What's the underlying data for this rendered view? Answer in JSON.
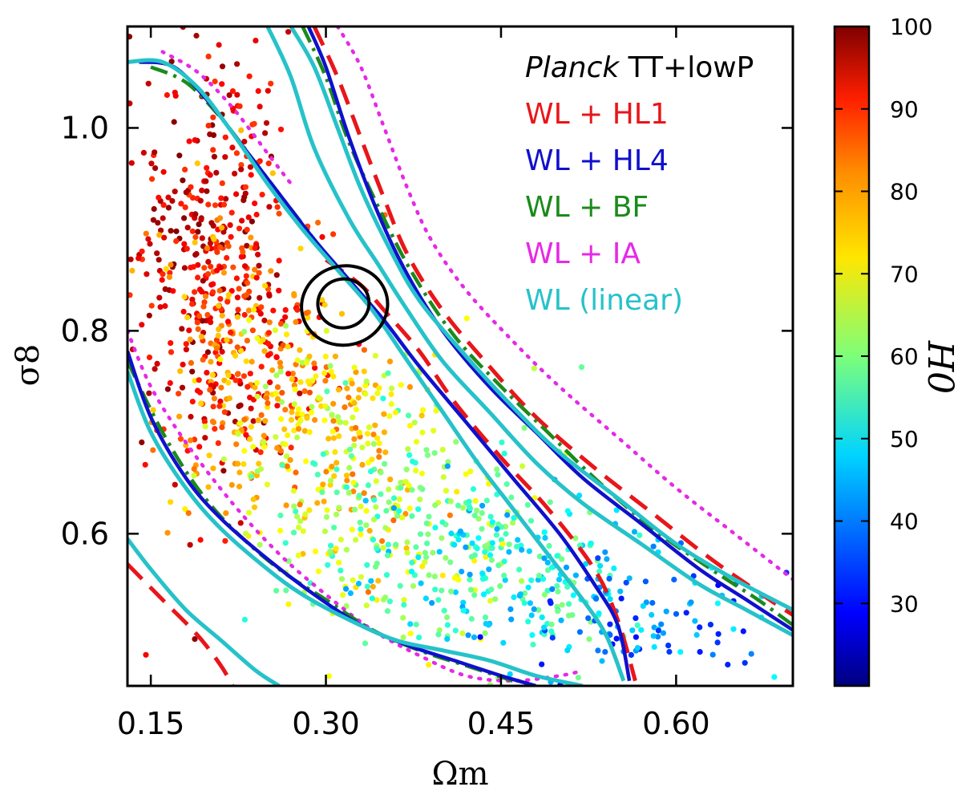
{
  "chart_data": {
    "type": "scatter",
    "xlabel": "Ωm",
    "ylabel": "σ8",
    "xlim": [
      0.13,
      0.7
    ],
    "ylim": [
      0.45,
      1.1
    ],
    "xticks": [
      "0.15",
      "0.30",
      "0.45",
      "0.60"
    ],
    "yticks": [
      "0.6",
      "0.8",
      "1.0"
    ],
    "colorbar": {
      "label": "H0",
      "range": [
        20,
        100
      ],
      "ticks": [
        "30",
        "40",
        "50",
        "60",
        "70",
        "80",
        "90",
        "100"
      ]
    },
    "legend": {
      "placement": "top-right",
      "entries": [
        {
          "italic": "Planck",
          "rest": " TT+lowP",
          "color": "#000000",
          "style": "solid"
        },
        {
          "text": "WL + HL1",
          "color": "#e8161a",
          "style": "dashed"
        },
        {
          "text": "WL + HL4",
          "color": "#1010cc",
          "style": "solid"
        },
        {
          "text": "WL + BF",
          "color": "#1c8a1c",
          "style": "dashdot"
        },
        {
          "text": "WL + IA",
          "color": "#e629e6",
          "style": "dotted"
        },
        {
          "text": "WL (linear)",
          "color": "#26c2c9",
          "style": "solid"
        }
      ]
    },
    "contours": {
      "WL (linear)": {
        "inner_right": [
          [
            0.25,
            1.1
          ],
          [
            0.27,
            1.05
          ],
          [
            0.29,
            0.98
          ],
          [
            0.32,
            0.91
          ],
          [
            0.345,
            0.865
          ],
          [
            0.37,
            0.82
          ],
          [
            0.4,
            0.77
          ],
          [
            0.44,
            0.72
          ],
          [
            0.48,
            0.67
          ],
          [
            0.52,
            0.63
          ],
          [
            0.57,
            0.59
          ],
          [
            0.62,
            0.55
          ],
          [
            0.66,
            0.525
          ],
          [
            0.7,
            0.5
          ]
        ],
        "outer_right": [
          [
            0.27,
            1.1
          ],
          [
            0.29,
            1.06
          ],
          [
            0.31,
            1.0
          ],
          [
            0.33,
            0.94
          ],
          [
            0.355,
            0.88
          ],
          [
            0.38,
            0.83
          ],
          [
            0.42,
            0.775
          ],
          [
            0.46,
            0.725
          ],
          [
            0.5,
            0.68
          ],
          [
            0.55,
            0.635
          ],
          [
            0.6,
            0.59
          ],
          [
            0.65,
            0.555
          ],
          [
            0.7,
            0.525
          ]
        ],
        "inner_left": [
          [
            0.13,
            0.76
          ],
          [
            0.15,
            0.7
          ],
          [
            0.18,
            0.645
          ],
          [
            0.21,
            0.605
          ],
          [
            0.25,
            0.565
          ],
          [
            0.28,
            0.54
          ],
          [
            0.32,
            0.515
          ],
          [
            0.36,
            0.495
          ],
          [
            0.4,
            0.485
          ],
          [
            0.44,
            0.475
          ],
          [
            0.48,
            0.46
          ],
          [
            0.52,
            0.45
          ]
        ],
        "outer_left": [
          [
            0.13,
            0.595
          ],
          [
            0.15,
            0.565
          ],
          [
            0.18,
            0.525
          ],
          [
            0.21,
            0.495
          ],
          [
            0.24,
            0.465
          ],
          [
            0.26,
            0.45
          ]
        ],
        "mid_upper": [
          [
            0.13,
            1.065
          ],
          [
            0.16,
            1.065
          ],
          [
            0.19,
            1.04
          ],
          [
            0.22,
            0.995
          ],
          [
            0.25,
            0.945
          ],
          [
            0.28,
            0.9
          ],
          [
            0.31,
            0.86
          ],
          [
            0.34,
            0.82
          ],
          [
            0.37,
            0.77
          ],
          [
            0.4,
            0.72
          ],
          [
            0.43,
            0.67
          ],
          [
            0.46,
            0.625
          ],
          [
            0.49,
            0.58
          ],
          [
            0.52,
            0.535
          ],
          [
            0.54,
            0.5
          ],
          [
            0.555,
            0.455
          ]
        ]
      },
      "WL + HL1": {
        "right": [
          [
            0.29,
            1.1
          ],
          [
            0.31,
            1.05
          ],
          [
            0.33,
            0.99
          ],
          [
            0.35,
            0.93
          ],
          [
            0.37,
            0.875
          ],
          [
            0.4,
            0.82
          ],
          [
            0.44,
            0.765
          ],
          [
            0.48,
            0.715
          ],
          [
            0.53,
            0.665
          ],
          [
            0.58,
            0.62
          ],
          [
            0.63,
            0.575
          ],
          [
            0.68,
            0.535
          ],
          [
            0.7,
            0.52
          ]
        ],
        "left": [
          [
            0.13,
            0.57
          ],
          [
            0.16,
            0.535
          ],
          [
            0.19,
            0.5
          ],
          [
            0.21,
            0.47
          ],
          [
            0.22,
            0.45
          ]
        ],
        "mid": [
          [
            0.3,
            0.87
          ],
          [
            0.33,
            0.845
          ],
          [
            0.35,
            0.82
          ],
          [
            0.38,
            0.78
          ],
          [
            0.41,
            0.73
          ],
          [
            0.45,
            0.675
          ],
          [
            0.49,
            0.625
          ],
          [
            0.53,
            0.565
          ],
          [
            0.55,
            0.515
          ],
          [
            0.565,
            0.455
          ]
        ]
      },
      "WL + IA": {
        "right": [
          [
            0.31,
            1.1
          ],
          [
            0.33,
            1.06
          ],
          [
            0.35,
            1.0
          ],
          [
            0.37,
            0.94
          ],
          [
            0.39,
            0.89
          ],
          [
            0.42,
            0.84
          ],
          [
            0.46,
            0.79
          ],
          [
            0.5,
            0.745
          ],
          [
            0.55,
            0.695
          ],
          [
            0.6,
            0.645
          ],
          [
            0.65,
            0.6
          ],
          [
            0.7,
            0.555
          ]
        ],
        "inner": [
          [
            0.13,
            0.8
          ],
          [
            0.15,
            0.745
          ],
          [
            0.18,
            0.69
          ],
          [
            0.22,
            0.63
          ],
          [
            0.26,
            0.58
          ],
          [
            0.3,
            0.54
          ],
          [
            0.34,
            0.505
          ],
          [
            0.38,
            0.48
          ],
          [
            0.42,
            0.46
          ],
          [
            0.46,
            0.455
          ],
          [
            0.5,
            0.46
          ],
          [
            0.52,
            0.465
          ]
        ],
        "upper_left": [
          [
            0.16,
            1.075
          ],
          [
            0.19,
            1.055
          ],
          [
            0.22,
            1.02
          ],
          [
            0.25,
            0.975
          ],
          [
            0.27,
            0.945
          ]
        ]
      },
      "WL + HL4": {
        "right": [
          [
            0.285,
            1.1
          ],
          [
            0.3,
            1.06
          ],
          [
            0.32,
            0.99
          ],
          [
            0.345,
            0.915
          ],
          [
            0.37,
            0.855
          ],
          [
            0.4,
            0.8
          ],
          [
            0.44,
            0.745
          ],
          [
            0.48,
            0.7
          ],
          [
            0.52,
            0.655
          ],
          [
            0.57,
            0.61
          ],
          [
            0.62,
            0.565
          ],
          [
            0.66,
            0.535
          ],
          [
            0.7,
            0.505
          ]
        ],
        "left": [
          [
            0.13,
            0.78
          ],
          [
            0.15,
            0.715
          ],
          [
            0.18,
            0.655
          ],
          [
            0.21,
            0.615
          ],
          [
            0.25,
            0.575
          ],
          [
            0.29,
            0.54
          ],
          [
            0.33,
            0.51
          ],
          [
            0.37,
            0.49
          ],
          [
            0.41,
            0.475
          ],
          [
            0.45,
            0.46
          ],
          [
            0.48,
            0.45
          ]
        ],
        "upper": [
          [
            0.14,
            1.065
          ],
          [
            0.17,
            1.06
          ],
          [
            0.2,
            1.025
          ],
          [
            0.23,
            0.98
          ],
          [
            0.26,
            0.935
          ],
          [
            0.29,
            0.89
          ],
          [
            0.32,
            0.85
          ],
          [
            0.35,
            0.81
          ],
          [
            0.38,
            0.765
          ],
          [
            0.42,
            0.71
          ],
          [
            0.46,
            0.655
          ],
          [
            0.5,
            0.6
          ],
          [
            0.53,
            0.55
          ],
          [
            0.55,
            0.51
          ],
          [
            0.56,
            0.455
          ]
        ]
      },
      "WL + BF": {
        "right": [
          [
            0.28,
            1.1
          ],
          [
            0.3,
            1.05
          ],
          [
            0.32,
            0.985
          ],
          [
            0.35,
            0.91
          ],
          [
            0.375,
            0.855
          ],
          [
            0.41,
            0.795
          ],
          [
            0.45,
            0.745
          ],
          [
            0.49,
            0.7
          ],
          [
            0.53,
            0.655
          ],
          [
            0.58,
            0.605
          ],
          [
            0.63,
            0.565
          ],
          [
            0.67,
            0.535
          ],
          [
            0.7,
            0.51
          ]
        ],
        "left": [
          [
            0.13,
            0.77
          ],
          [
            0.16,
            0.7
          ],
          [
            0.19,
            0.645
          ],
          [
            0.22,
            0.605
          ],
          [
            0.26,
            0.565
          ],
          [
            0.3,
            0.535
          ],
          [
            0.34,
            0.505
          ],
          [
            0.38,
            0.485
          ],
          [
            0.42,
            0.47
          ],
          [
            0.46,
            0.455
          ]
        ],
        "upper": [
          [
            0.15,
            1.06
          ],
          [
            0.18,
            1.045
          ],
          [
            0.21,
            1.01
          ],
          [
            0.24,
            0.965
          ],
          [
            0.27,
            0.92
          ],
          [
            0.3,
            0.875
          ]
        ]
      },
      "Planck TT+lowP": {
        "inner": {
          "cx": 0.315,
          "cy": 0.827,
          "rx": 0.022,
          "ry": 0.024
        },
        "outer": {
          "cx": 0.316,
          "cy": 0.825,
          "rx": 0.037,
          "ry": 0.039
        }
      }
    },
    "scatter": {
      "seed": 12345,
      "groups": [
        {
          "cx": 0.2,
          "cy": 0.9,
          "sx": 0.035,
          "sy": 0.1,
          "n": 360,
          "h": [
            85,
            100
          ]
        },
        {
          "cx": 0.23,
          "cy": 0.78,
          "sx": 0.04,
          "sy": 0.07,
          "n": 260,
          "h": [
            72,
            92
          ]
        },
        {
          "cx": 0.29,
          "cy": 0.7,
          "sx": 0.05,
          "sy": 0.06,
          "n": 260,
          "h": [
            62,
            82
          ]
        },
        {
          "cx": 0.37,
          "cy": 0.62,
          "sx": 0.06,
          "sy": 0.06,
          "n": 260,
          "h": [
            52,
            72
          ]
        },
        {
          "cx": 0.46,
          "cy": 0.56,
          "sx": 0.06,
          "sy": 0.045,
          "n": 220,
          "h": [
            42,
            62
          ]
        },
        {
          "cx": 0.58,
          "cy": 0.51,
          "sx": 0.06,
          "sy": 0.035,
          "n": 110,
          "h": [
            30,
            50
          ]
        }
      ]
    }
  }
}
